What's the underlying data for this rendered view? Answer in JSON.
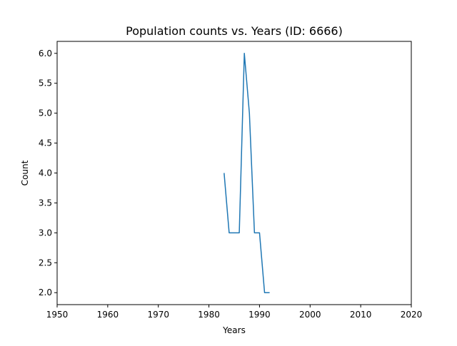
{
  "chart_data": {
    "type": "line",
    "title": "Population counts vs. Years (ID: 6666)",
    "xlabel": "Years",
    "ylabel": "Count",
    "xlim": [
      1950,
      2020
    ],
    "ylim": [
      1.8,
      6.2
    ],
    "x_ticks": [
      1950,
      1960,
      1970,
      1980,
      1990,
      2000,
      2010,
      2020
    ],
    "y_ticks": [
      2.0,
      2.5,
      3.0,
      3.5,
      4.0,
      4.5,
      5.0,
      5.5,
      6.0
    ],
    "x_tick_labels": [
      "1950",
      "1960",
      "1970",
      "1980",
      "1990",
      "2000",
      "2010",
      "2020"
    ],
    "y_tick_labels": [
      "2.0",
      "2.5",
      "3.0",
      "3.5",
      "4.0",
      "4.5",
      "5.0",
      "5.5",
      "6.0"
    ],
    "grid": false,
    "series": [
      {
        "color": "#1f77b4",
        "x": [
          1983,
          1984,
          1985,
          1986,
          1987,
          1988,
          1989,
          1990,
          1991,
          1992
        ],
        "y": [
          4,
          3,
          3,
          3,
          6,
          5,
          3,
          3,
          2,
          2
        ]
      }
    ]
  }
}
